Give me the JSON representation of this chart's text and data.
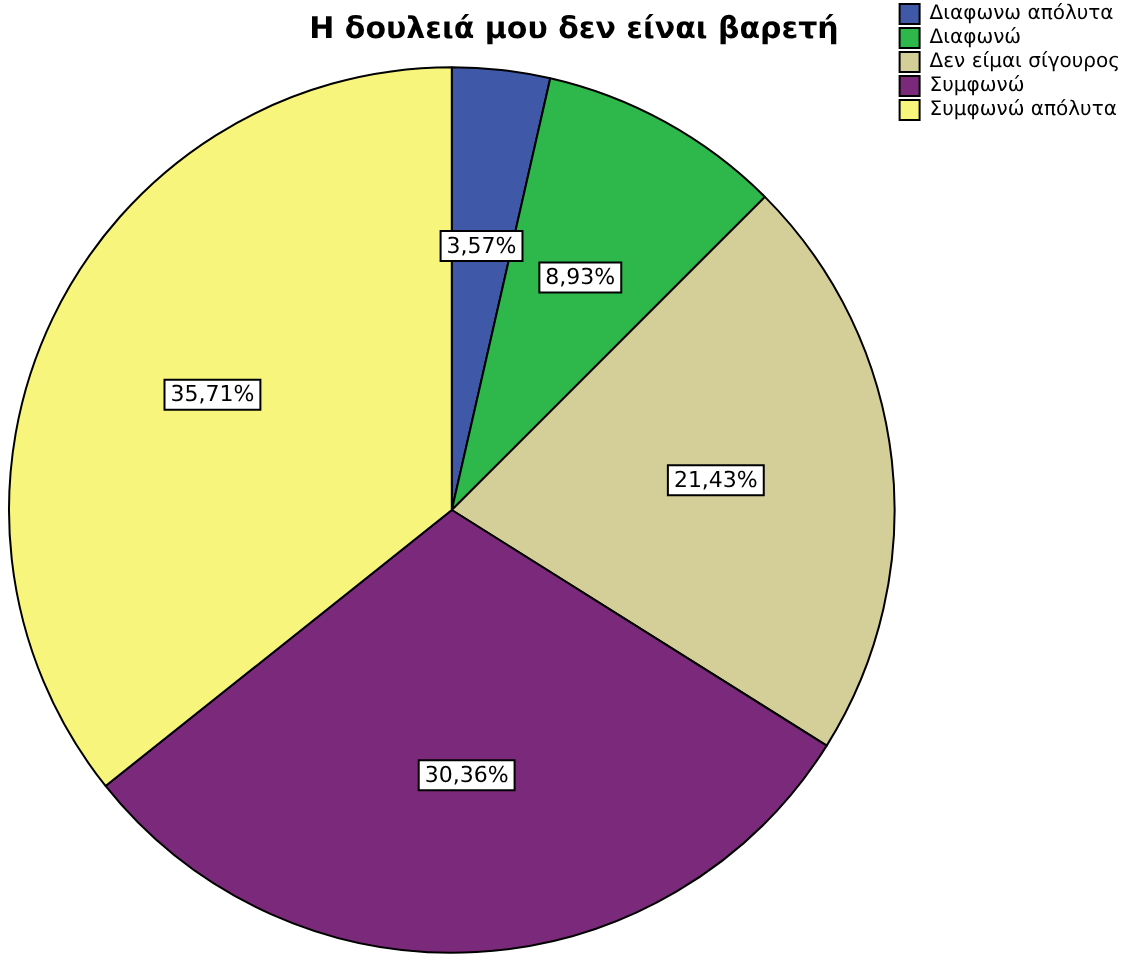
{
  "chart_data": {
    "type": "pie",
    "title": "Η δουλειά μου δεν είναι βαρετή",
    "categories": [
      "Διαφωνω απόλυτα",
      "Διαφωνώ",
      "Δεν είμαι σίγουρος",
      "Συμφωνώ",
      "Συμφωνώ απόλυτα"
    ],
    "values": [
      3.57,
      8.93,
      21.43,
      30.36,
      35.71
    ],
    "value_labels": [
      "3,57%",
      "8,93%",
      "21,43%",
      "30,36%",
      "35,71%"
    ],
    "colors": [
      "#3f59a8",
      "#2eb84b",
      "#d4cf98",
      "#7b2a7b",
      "#f8f57c"
    ],
    "legend": "top right"
  }
}
